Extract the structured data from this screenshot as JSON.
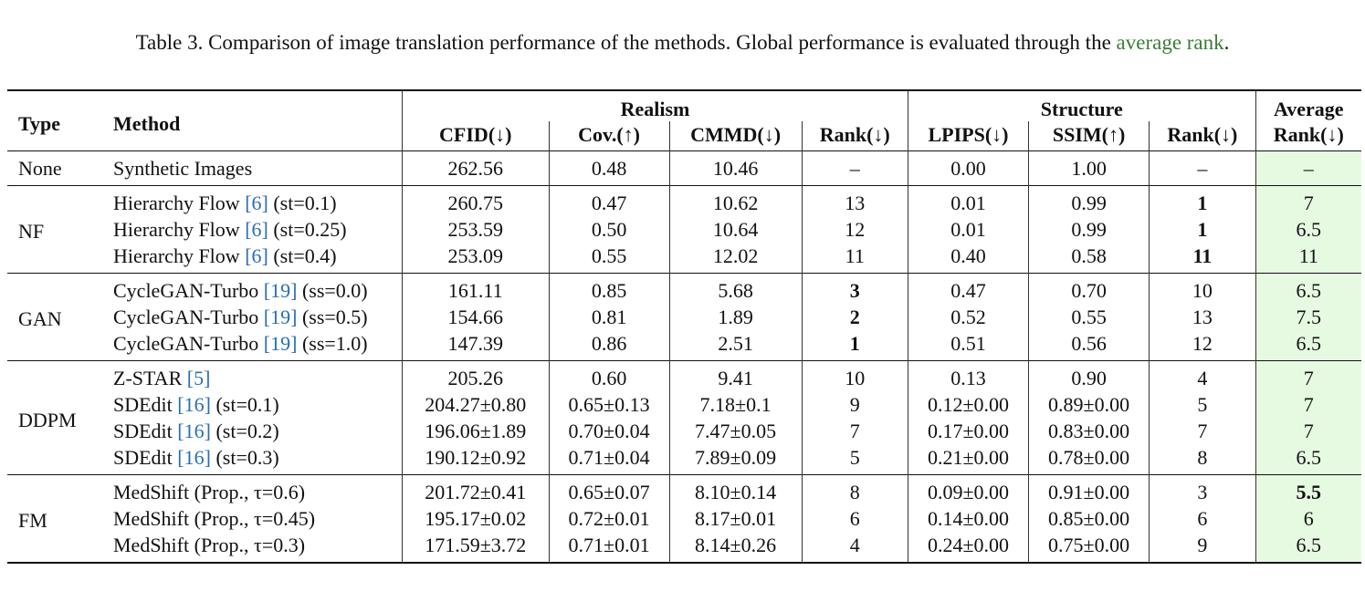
{
  "caption": {
    "text_before": "Table 3. Comparison of image translation performance of the methods. Global performance is evaluated through the ",
    "highlight": "average rank",
    "text_after": "."
  },
  "headers": {
    "type": "Type",
    "method": "Method",
    "realism": "Realism",
    "structure": "Structure",
    "average_line1": "Average",
    "average_line2": "Rank(↓)",
    "cfid": "CFID(↓)",
    "cov": "Cov.(↑)",
    "cmmd": "CMMD(↓)",
    "rank_realism": "Rank(↓)",
    "lpips": "LPIPS(↓)",
    "ssim": "SSIM(↑)",
    "rank_structure": "Rank(↓)"
  },
  "groups": [
    {
      "type": "None",
      "rows": [
        {
          "method": "Synthetic Images",
          "ref": "",
          "suffix": "",
          "cfid": "262.56",
          "cov": "0.48",
          "cmmd": "10.46",
          "rank_r": "–",
          "lpips": "0.00",
          "ssim": "1.00",
          "rank_s": "–",
          "avg": "–"
        }
      ]
    },
    {
      "type": "NF",
      "rows": [
        {
          "method": "Hierarchy Flow ",
          "ref": "[6]",
          "suffix": " (st=0.1)",
          "cfid": "260.75",
          "cov": "0.47",
          "cmmd": "10.62",
          "rank_r": "13",
          "lpips": "0.01",
          "ssim": "0.99",
          "rank_s": "1",
          "rank_s_bold": true,
          "avg": "7"
        },
        {
          "method": "Hierarchy Flow ",
          "ref": "[6]",
          "suffix": " (st=0.25)",
          "cfid": "253.59",
          "cov": "0.50",
          "cmmd": "10.64",
          "rank_r": "12",
          "lpips": "0.01",
          "ssim": "0.99",
          "rank_s": "1",
          "rank_s_bold": true,
          "avg": "6.5"
        },
        {
          "method": "Hierarchy Flow ",
          "ref": "[6]",
          "suffix": " (st=0.4)",
          "cfid": "253.09",
          "cov": "0.55",
          "cmmd": "12.02",
          "rank_r": "11",
          "lpips": "0.40",
          "ssim": "0.58",
          "rank_s": "11",
          "rank_s_bold": true,
          "avg": "11"
        }
      ]
    },
    {
      "type": "GAN",
      "rows": [
        {
          "method": "CycleGAN-Turbo ",
          "ref": "[19]",
          "suffix": " (ss=0.0)",
          "cfid": "161.11",
          "cov": "0.85",
          "cmmd": "5.68",
          "rank_r": "3",
          "rank_r_bold": true,
          "lpips": "0.47",
          "ssim": "0.70",
          "rank_s": "10",
          "avg": "6.5"
        },
        {
          "method": "CycleGAN-Turbo ",
          "ref": "[19]",
          "suffix": " (ss=0.5)",
          "cfid": "154.66",
          "cov": "0.81",
          "cmmd": "1.89",
          "rank_r": "2",
          "rank_r_bold": true,
          "lpips": "0.52",
          "ssim": "0.55",
          "rank_s": "13",
          "avg": "7.5"
        },
        {
          "method": "CycleGAN-Turbo ",
          "ref": "[19]",
          "suffix": " (ss=1.0)",
          "cfid": "147.39",
          "cov": "0.86",
          "cmmd": "2.51",
          "rank_r": "1",
          "rank_r_bold": true,
          "lpips": "0.51",
          "ssim": "0.56",
          "rank_s": "12",
          "avg": "6.5"
        }
      ]
    },
    {
      "type": "DDPM",
      "rows": [
        {
          "method": "Z-STAR ",
          "ref": "[5]",
          "suffix": "",
          "cfid": "205.26",
          "cov": "0.60",
          "cmmd": "9.41",
          "rank_r": "10",
          "lpips": "0.13",
          "ssim": "0.90",
          "rank_s": "4",
          "avg": "7"
        },
        {
          "method": "SDEdit ",
          "ref": "[16]",
          "suffix": " (st=0.1)",
          "cfid": "204.27±0.80",
          "cov": "0.65±0.13",
          "cmmd": "7.18±0.1",
          "rank_r": "9",
          "lpips": "0.12±0.00",
          "ssim": "0.89±0.00",
          "rank_s": "5",
          "avg": "7"
        },
        {
          "method": "SDEdit ",
          "ref": "[16]",
          "suffix": " (st=0.2)",
          "cfid": "196.06±1.89",
          "cov": "0.70±0.04",
          "cmmd": "7.47±0.05",
          "rank_r": "7",
          "lpips": "0.17±0.00",
          "ssim": "0.83±0.00",
          "rank_s": "7",
          "avg": "7"
        },
        {
          "method": "SDEdit ",
          "ref": "[16]",
          "suffix": " (st=0.3)",
          "cfid": "190.12±0.92",
          "cov": "0.71±0.04",
          "cmmd": "7.89±0.09",
          "rank_r": "5",
          "lpips": "0.21±0.00",
          "ssim": "0.78±0.00",
          "rank_s": "8",
          "avg": "6.5"
        }
      ]
    },
    {
      "type": "FM",
      "rows": [
        {
          "method": "MedShift (Prop., ",
          "ref": "",
          "suffix": "τ=0.6)",
          "cfid": "201.72±0.41",
          "cov": "0.65±0.07",
          "cmmd": "8.10±0.14",
          "rank_r": "8",
          "lpips": "0.09±0.00",
          "ssim": "0.91±0.00",
          "rank_s": "3",
          "avg": "5.5",
          "avg_bold": true
        },
        {
          "method": "MedShift (Prop., ",
          "ref": "",
          "suffix": "τ=0.45)",
          "cfid": "195.17±0.02",
          "cov": "0.72±0.01",
          "cmmd": "8.17±0.01",
          "rank_r": "6",
          "lpips": "0.14±0.00",
          "ssim": "0.85±0.00",
          "rank_s": "6",
          "avg": "6"
        },
        {
          "method": "MedShift (Prop., ",
          "ref": "",
          "suffix": "τ=0.3)",
          "cfid": "171.59±3.72",
          "cov": "0.71±0.01",
          "cmmd": "8.14±0.26",
          "rank_r": "4",
          "lpips": "0.24±0.00",
          "ssim": "0.75±0.00",
          "rank_s": "9",
          "avg": "6.5"
        }
      ]
    }
  ],
  "colors": {
    "highlight_text": "#3a7d35",
    "average_column_bg": "#e6f9e1",
    "citation": "#2a6db5"
  }
}
